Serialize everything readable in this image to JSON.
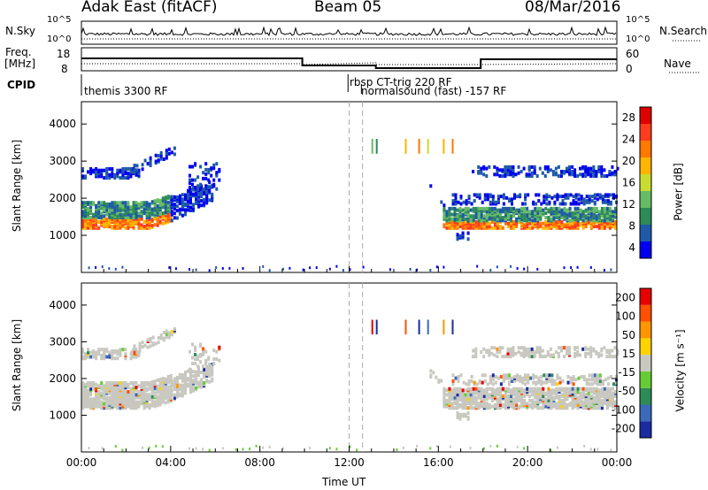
{
  "header": {
    "station": "Adak East (fitACF)",
    "beam": "Beam 05",
    "date": "08/Mar/2016"
  },
  "status_panels": {
    "nsky_label": "N.Sky",
    "nsky_ticks": [
      "10^5",
      "10^0"
    ],
    "nsearch_label": "N.Search",
    "freq_label_top": "Freq.",
    "freq_label_unit": "[MHz]",
    "freq_ticks": [
      "18",
      "8"
    ],
    "nave_ticks": [
      "60",
      "0"
    ],
    "nave_label": "Nave",
    "cpid_label": "CPID",
    "cpid_entries": [
      "themis 3300 RF",
      "rbsp CT-trig 220 RF",
      "normalsound (fast) -157 RF"
    ]
  },
  "chart_data": [
    {
      "type": "heatmap",
      "name": "power",
      "ylabel": "Slant Range [km]",
      "ylim": [
        0,
        4600
      ],
      "y_ticks": [
        1000,
        2000,
        3000,
        4000
      ],
      "xlim": [
        0,
        24
      ],
      "colorbar_label": "Power [dB]",
      "colorbar_ticks": [
        4,
        8,
        12,
        16,
        20,
        24,
        28
      ],
      "colors": [
        "#0000ee",
        "#1e5aa8",
        "#2e8b57",
        "#66bb66",
        "#c8dc32",
        "#ffb400",
        "#ff7800",
        "#ff3c1e",
        "#dd0000"
      ],
      "dashed_markers_hours": [
        12.0,
        12.6
      ]
    },
    {
      "type": "heatmap",
      "name": "velocity",
      "ylabel": "Slant Range [km]",
      "ylim": [
        0,
        4600
      ],
      "y_ticks": [
        1000,
        2000,
        3000,
        4000
      ],
      "xlim": [
        0,
        24
      ],
      "colorbar_label": "Velocity [m s⁻¹]",
      "colorbar_ticks": [
        200,
        100,
        50,
        15,
        -15,
        -50,
        -100,
        -200
      ],
      "colors": [
        "#1a2ca0",
        "#3a6ab8",
        "#2e8b57",
        "#66cc33",
        "#c8c8c0",
        "#ffd200",
        "#ff9600",
        "#ff5000",
        "#e60000"
      ],
      "dashed_markers_hours": [
        12.0,
        12.6
      ]
    }
  ],
  "x_axis": {
    "tick_labels": [
      "00:00",
      "04:00",
      "08:00",
      "12:00",
      "16:00",
      "20:00",
      "00:00"
    ],
    "title": "Time UT"
  }
}
